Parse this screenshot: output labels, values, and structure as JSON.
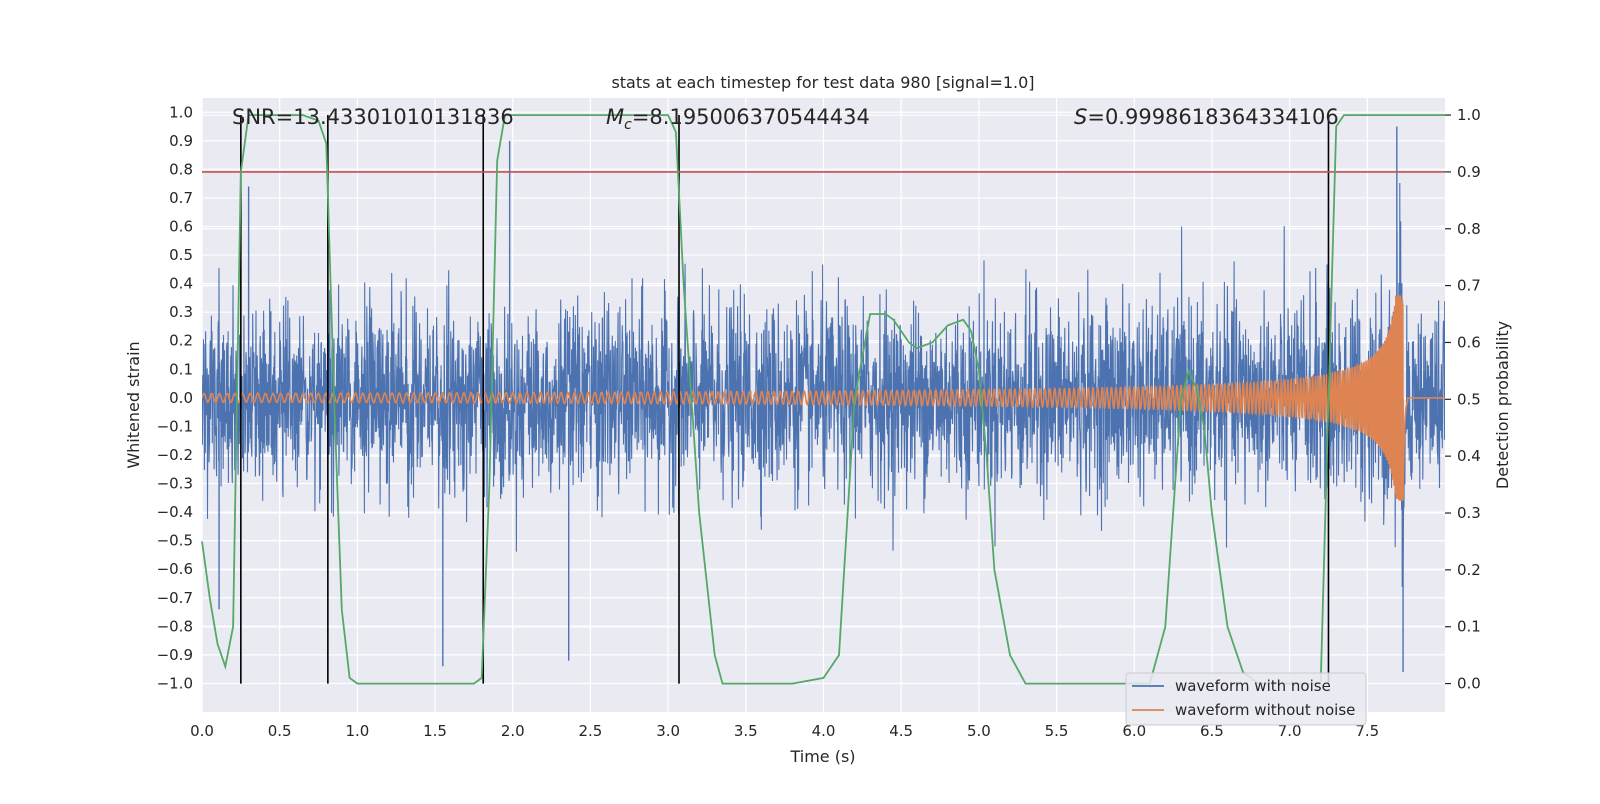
{
  "chart_data": {
    "type": "line",
    "title": "stats at each timestep for test data 980 [signal=1.0]",
    "xlabel": "Time (s)",
    "ylabel_left": "Whitened strain",
    "ylabel_right": "Detection probability",
    "xlim": [
      0.0,
      8.0
    ],
    "ylim_left": [
      -1.1,
      1.05
    ],
    "ylim_right": [
      -0.05,
      1.03
    ],
    "x_ticks": [
      0.0,
      0.5,
      1.0,
      1.5,
      2.0,
      2.5,
      3.0,
      3.5,
      4.0,
      4.5,
      5.0,
      5.5,
      6.0,
      6.5,
      7.0,
      7.5
    ],
    "x_tick_labels": [
      "0.0",
      "0.5",
      "1.0",
      "1.5",
      "2.0",
      "2.5",
      "3.0",
      "3.5",
      "4.0",
      "4.5",
      "5.0",
      "5.5",
      "6.0",
      "6.5",
      "7.0",
      "7.5"
    ],
    "y_left_ticks": [
      1.0,
      0.9,
      0.8,
      0.7,
      0.6,
      0.5,
      0.4,
      0.3,
      0.2,
      0.1,
      0.0,
      -0.1,
      -0.2,
      -0.3,
      -0.4,
      -0.5,
      -0.6,
      -0.7,
      -0.8,
      -0.9,
      -1.0
    ],
    "y_left_tick_labels": [
      "1.0",
      "0.9",
      "0.8",
      "0.7",
      "0.6",
      "0.5",
      "0.4",
      "0.3",
      "0.2",
      "0.1",
      "0.0",
      "−0.1",
      "−0.2",
      "−0.3",
      "−0.4",
      "−0.5",
      "−0.6",
      "−0.7",
      "−0.8",
      "−0.9",
      "−1.0"
    ],
    "y_right_ticks": [
      1.0,
      0.9,
      0.8,
      0.7,
      0.6,
      0.5,
      0.4,
      0.3,
      0.2,
      0.1,
      0.0
    ],
    "y_right_tick_labels": [
      "1.0",
      "0.9",
      "0.8",
      "0.7",
      "0.6",
      "0.5",
      "0.4",
      "0.3",
      "0.2",
      "0.1",
      "0.0"
    ],
    "annotations": {
      "snr": "SNR=13.43301010131836",
      "mc_symbol": "M",
      "mc_subscript": "c",
      "mc_value": "=8.195006370544434",
      "s_symbol": "S",
      "s_value": "=0.9998618364334106"
    },
    "threshold": {
      "value": 0.9,
      "axis": "right",
      "color": "#c44e52"
    },
    "vertical_lines_x": [
      0.25,
      0.81,
      1.81,
      3.07,
      7.25
    ],
    "detection_probability": {
      "name": "Detection probability",
      "color": "#55a868",
      "x": [
        0.0,
        0.05,
        0.1,
        0.15,
        0.2,
        0.25,
        0.3,
        0.35,
        0.5,
        0.65,
        0.75,
        0.8,
        0.85,
        0.9,
        0.95,
        1.0,
        1.05,
        1.1,
        1.5,
        1.75,
        1.8,
        1.85,
        1.9,
        1.95,
        2.0,
        2.5,
        3.0,
        3.05,
        3.1,
        3.2,
        3.3,
        3.35,
        3.4,
        3.6,
        3.8,
        4.0,
        4.1,
        4.2,
        4.3,
        4.4,
        4.45,
        4.55,
        4.6,
        4.7,
        4.8,
        4.9,
        4.95,
        5.0,
        5.05,
        5.1,
        5.2,
        5.3,
        5.5,
        6.0,
        6.1,
        6.2,
        6.25,
        6.3,
        6.35,
        6.4,
        6.45,
        6.5,
        6.6,
        6.7,
        6.8,
        7.0,
        7.1,
        7.2,
        7.25,
        7.3,
        7.35,
        7.5,
        7.6,
        8.0
      ],
      "values": [
        0.25,
        0.15,
        0.07,
        0.03,
        0.1,
        0.9,
        1.0,
        1.0,
        1.0,
        1.0,
        0.99,
        0.95,
        0.5,
        0.13,
        0.01,
        0.0,
        0.0,
        0.0,
        0.0,
        0.0,
        0.01,
        0.35,
        0.92,
        1.0,
        1.0,
        1.0,
        1.0,
        0.97,
        0.7,
        0.3,
        0.05,
        0.0,
        0.0,
        0.0,
        0.0,
        0.01,
        0.05,
        0.5,
        0.65,
        0.65,
        0.64,
        0.6,
        0.59,
        0.6,
        0.63,
        0.64,
        0.62,
        0.55,
        0.4,
        0.2,
        0.05,
        0.0,
        0.0,
        0.0,
        0.0,
        0.1,
        0.3,
        0.5,
        0.55,
        0.52,
        0.45,
        0.3,
        0.1,
        0.02,
        0.0,
        0.0,
        0.0,
        0.0,
        0.5,
        0.98,
        1.0,
        1.0,
        1.0,
        1.0
      ]
    },
    "strain_with_noise": {
      "name": "waveform with noise",
      "color": "#4c72b0",
      "sample_rate_hz": 512,
      "typical_range": [
        -0.45,
        0.45
      ],
      "peak_range": [
        -0.97,
        0.93
      ],
      "highlight_peaks": [
        {
          "x": 1.98,
          "y": 0.9
        },
        {
          "x": 7.69,
          "y": 0.95
        },
        {
          "x": 7.73,
          "y": -0.96
        },
        {
          "x": 1.55,
          "y": -0.94
        },
        {
          "x": 0.11,
          "y": -0.74
        },
        {
          "x": 0.3,
          "y": 0.74
        },
        {
          "x": 2.36,
          "y": -0.92
        }
      ]
    },
    "strain_without_noise": {
      "name": "waveform without noise",
      "color": "#dd8452",
      "model": "chirp",
      "start_amplitude": 0.015,
      "peak_amplitude": 0.36,
      "start_frequency_hz": 20,
      "end_frequency_hz": 200,
      "merger_time_s": 7.73,
      "ringdown_end_s": 7.76
    },
    "legend": {
      "location": "lower-right",
      "entries": [
        {
          "label": "waveform with noise",
          "color": "#4c72b0"
        },
        {
          "label": "waveform without noise",
          "color": "#dd8452"
        }
      ]
    },
    "grid": true
  }
}
